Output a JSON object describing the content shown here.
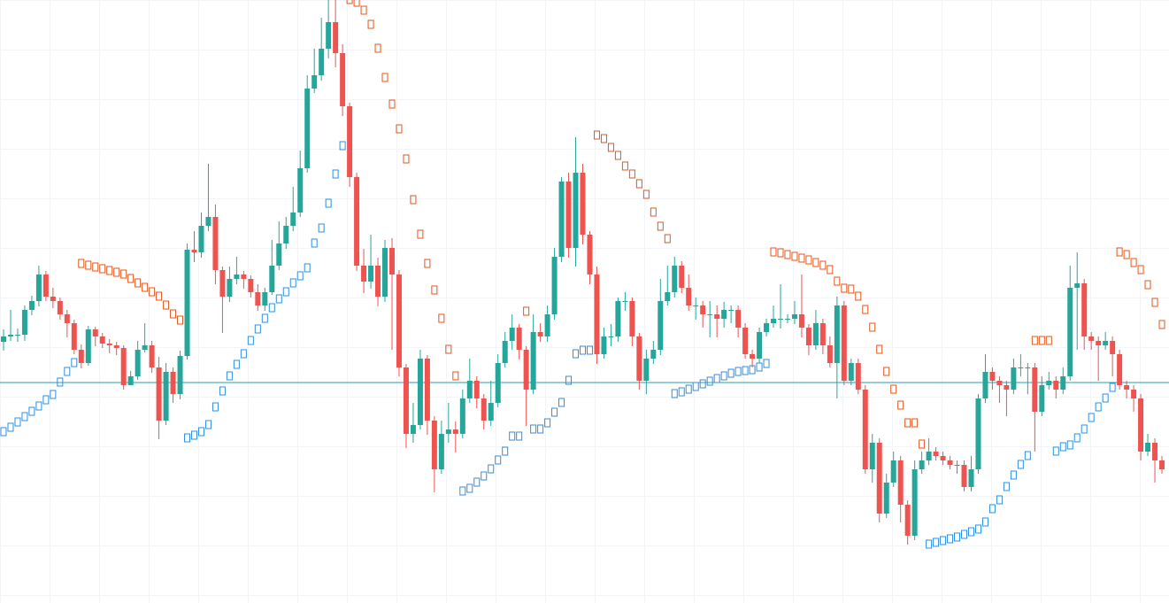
{
  "chart_data": {
    "type": "candlestick",
    "ylim": [
      0,
      681
    ],
    "up_color": "#26a69a",
    "down_color": "#ef5350",
    "open": [
      295,
      301,
      303,
      303,
      331,
      341,
      371,
      346,
      341,
      326,
      316,
      286,
      271,
      309,
      301,
      293,
      291,
      288,
      246,
      256,
      286,
      291,
      266,
      206,
      261,
      236,
      279,
      399,
      396,
      426,
      436,
      376,
      346,
      366,
      371,
      366,
      351,
      336,
      351,
      381,
      406,
      426,
      441,
      491,
      581,
      596,
      626,
      656,
      621,
      561,
      481,
      381,
      363,
      381,
      346,
      401,
      371,
      266,
      191,
      201,
      276,
      206,
      151,
      191,
      196,
      191,
      231,
      251,
      231,
      206,
      226,
      271,
      296,
      311,
      286,
      241,
      306,
      301,
      326,
      391,
      476,
      401,
      486,
      416,
      371,
      281,
      301,
      301,
      341,
      341,
      301,
      251,
      276,
      286,
      341,
      351,
      381,
      356,
      336,
      336,
      326,
      326,
      321,
      331,
      331,
      311,
      281,
      276,
      306,
      316,
      321,
      321,
      321,
      326,
      311,
      291,
      316,
      291,
      271,
      336,
      251,
      271,
      241,
      151,
      181,
      101,
      136,
      161,
      111,
      76,
      151,
      161,
      171,
      166,
      161,
      156,
      156,
      131,
      151,
      231,
      261,
      251,
      246,
      241,
      266,
      266,
      266,
      216,
      246,
      251,
      241,
      256,
      356,
      361,
      301,
      296,
      291,
      296,
      281,
      246,
      241,
      231,
      171,
      181,
      161
    ],
    "high": [
      309,
      331,
      310,
      336,
      347,
      381,
      375,
      356,
      345,
      331,
      320,
      292,
      313,
      312,
      305,
      298,
      295,
      291,
      262,
      296,
      316,
      296,
      278,
      271,
      266,
      285,
      406,
      420,
      441,
      496,
      450,
      380,
      380,
      391,
      375,
      370,
      360,
      356,
      410,
      431,
      436,
      470,
      511,
      596,
      626,
      661,
      681,
      681,
      631,
      565,
      486,
      400,
      416,
      390,
      410,
      412,
      376,
      270,
      226,
      286,
      280,
      211,
      206,
      226,
      205,
      241,
      276,
      256,
      236,
      251,
      281,
      306,
      326,
      315,
      290,
      326,
      316,
      336,
      401,
      481,
      486,
      526,
      496,
      420,
      380,
      311,
      315,
      345,
      351,
      345,
      305,
      286,
      296,
      366,
      381,
      391,
      386,
      371,
      345,
      341,
      341,
      336,
      340,
      336,
      336,
      316,
      286,
      311,
      321,
      336,
      360,
      326,
      341,
      371,
      315,
      331,
      321,
      301,
      346,
      341,
      276,
      276,
      246,
      191,
      186,
      146,
      171,
      166,
      116,
      161,
      171,
      186,
      176,
      171,
      166,
      161,
      161,
      166,
      236,
      281,
      266,
      256,
      251,
      276,
      281,
      271,
      271,
      256,
      261,
      256,
      266,
      381,
      396,
      366,
      306,
      301,
      306,
      301,
      286,
      251,
      246,
      236,
      191,
      186,
      166
    ],
    "low": [
      285,
      296,
      295,
      296,
      325,
      335,
      341,
      333,
      320,
      300,
      281,
      265,
      268,
      290,
      288,
      282,
      280,
      241,
      250,
      252,
      283,
      260,
      185,
      201,
      226,
      230,
      275,
      385,
      390,
      420,
      360,
      305,
      340,
      360,
      355,
      345,
      330,
      330,
      348,
      376,
      400,
      420,
      436,
      486,
      576,
      590,
      615,
      605,
      550,
      470,
      375,
      350,
      355,
      335,
      340,
      286,
      256,
      175,
      181,
      196,
      190,
      125,
      146,
      181,
      170,
      186,
      226,
      220,
      196,
      200,
      221,
      266,
      286,
      275,
      200,
      236,
      295,
      295,
      320,
      385,
      390,
      380,
      405,
      360,
      270,
      276,
      290,
      295,
      330,
      290,
      241,
      236,
      270,
      280,
      336,
      345,
      350,
      330,
      320,
      311,
      300,
      300,
      311,
      316,
      300,
      276,
      266,
      271,
      301,
      311,
      310,
      316,
      315,
      300,
      280,
      286,
      281,
      266,
      231,
      246,
      246,
      236,
      146,
      136,
      91,
      96,
      131,
      91,
      66,
      71,
      146,
      156,
      161,
      156,
      151,
      146,
      126,
      126,
      146,
      226,
      241,
      226,
      211,
      236,
      256,
      236,
      171,
      211,
      241,
      231,
      236,
      251,
      286,
      286,
      286,
      251,
      286,
      256,
      241,
      231,
      216,
      161,
      166,
      136,
      146
    ],
    "close": [
      301,
      303,
      303,
      331,
      341,
      371,
      346,
      341,
      326,
      316,
      286,
      271,
      309,
      301,
      293,
      291,
      288,
      246,
      256,
      286,
      291,
      266,
      206,
      261,
      236,
      279,
      399,
      396,
      426,
      436,
      376,
      346,
      366,
      371,
      366,
      351,
      336,
      351,
      381,
      406,
      426,
      441,
      491,
      581,
      596,
      626,
      656,
      621,
      561,
      481,
      381,
      363,
      381,
      346,
      401,
      371,
      266,
      191,
      201,
      276,
      206,
      151,
      191,
      196,
      191,
      231,
      251,
      231,
      206,
      226,
      271,
      296,
      311,
      286,
      241,
      306,
      301,
      326,
      391,
      476,
      401,
      486,
      416,
      371,
      281,
      301,
      301,
      341,
      341,
      301,
      251,
      276,
      286,
      341,
      351,
      381,
      356,
      336,
      336,
      326,
      326,
      321,
      331,
      331,
      311,
      281,
      276,
      306,
      316,
      321,
      321,
      321,
      326,
      311,
      291,
      316,
      291,
      271,
      336,
      251,
      271,
      241,
      151,
      181,
      101,
      136,
      161,
      111,
      76,
      151,
      161,
      171,
      166,
      161,
      156,
      156,
      131,
      151,
      231,
      261,
      251,
      246,
      241,
      266,
      266,
      266,
      216,
      246,
      251,
      241,
      256,
      356,
      361,
      301,
      296,
      291,
      296,
      281,
      246,
      241,
      231,
      171,
      181,
      161,
      151
    ],
    "sar": {
      "up_color": "#2f8fe0",
      "down_color": "#e2571c",
      "values": [
        193,
        198,
        204,
        210,
        216,
        222,
        229,
        235,
        249,
        261,
        271,
        383,
        381,
        379,
        377,
        375,
        373,
        371,
        366,
        361,
        356,
        351,
        346,
        336,
        326,
        319,
        186,
        189,
        193,
        201,
        221,
        239,
        256,
        269,
        281,
        296,
        309,
        321,
        333,
        343,
        351,
        361,
        369,
        378,
        406,
        423,
        451,
        484,
        516,
        681,
        678,
        669,
        653,
        626,
        593,
        563,
        535,
        501,
        455,
        416,
        383,
        353,
        321,
        286,
        256,
        126,
        129,
        136,
        143,
        151,
        161,
        171,
        188,
        188,
        329,
        196,
        196,
        203,
        215,
        226,
        251,
        281,
        285,
        285,
        528,
        524,
        514,
        505,
        493,
        484,
        473,
        461,
        441,
        425,
        411,
        236,
        238,
        241,
        244,
        247,
        250,
        253,
        256,
        259,
        261,
        262,
        263,
        266,
        270,
        396,
        395,
        393,
        391,
        389,
        387,
        384,
        381,
        376,
        363,
        355,
        354,
        346,
        331,
        311,
        286,
        261,
        241,
        223,
        203,
        203,
        179,
        66,
        68,
        70,
        72,
        74,
        77,
        80,
        83,
        91,
        106,
        116,
        131,
        144,
        156,
        166,
        296,
        296,
        296,
        171,
        176,
        178,
        186,
        196,
        209,
        221,
        231,
        243,
        396,
        393,
        384,
        376,
        359,
        339,
        314
      ]
    },
    "price_line": {
      "value": 249,
      "color": "#2a9db0"
    }
  }
}
